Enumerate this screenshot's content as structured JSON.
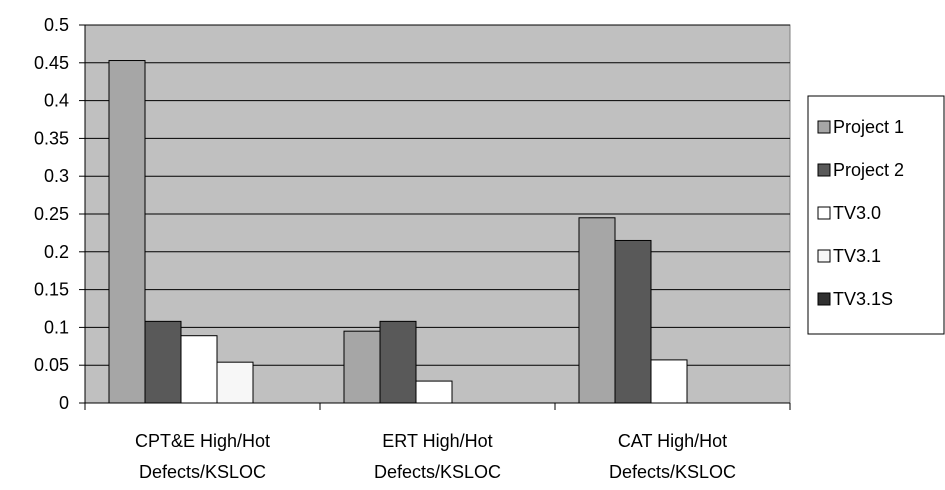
{
  "chart_data": {
    "type": "bar",
    "title": "",
    "xlabel": "",
    "ylabel": "",
    "categories": [
      [
        "CPT&E High/Hot",
        "Defects/KSLOC"
      ],
      [
        "ERT High/Hot",
        "Defects/KSLOC"
      ],
      [
        "CAT High/Hot",
        "Defects/KSLOC"
      ]
    ],
    "series": [
      {
        "name": "Project 1",
        "color": "#a6a6a6",
        "values": [
          0.453,
          0.095,
          0.245
        ]
      },
      {
        "name": "Project 2",
        "color": "#595959",
        "values": [
          0.108,
          0.108,
          0.215
        ]
      },
      {
        "name": "TV3.0",
        "color": "#ffffff",
        "values": [
          0.089,
          0.029,
          0.057
        ]
      },
      {
        "name": "TV3.1",
        "color": "#f7f7f7",
        "values": [
          0.054,
          0,
          0
        ]
      },
      {
        "name": "TV3.1S",
        "color": "#303030",
        "values": [
          0,
          0,
          0
        ]
      }
    ],
    "ylim": [
      0,
      0.5
    ],
    "yticks": [
      "0",
      "0.05",
      "0.1",
      "0.15",
      "0.2",
      "0.25",
      "0.3",
      "0.35",
      "0.4",
      "0.45",
      "0.5"
    ],
    "grid": true,
    "plot_background": "#c0c0c0",
    "legend_position": "right"
  }
}
